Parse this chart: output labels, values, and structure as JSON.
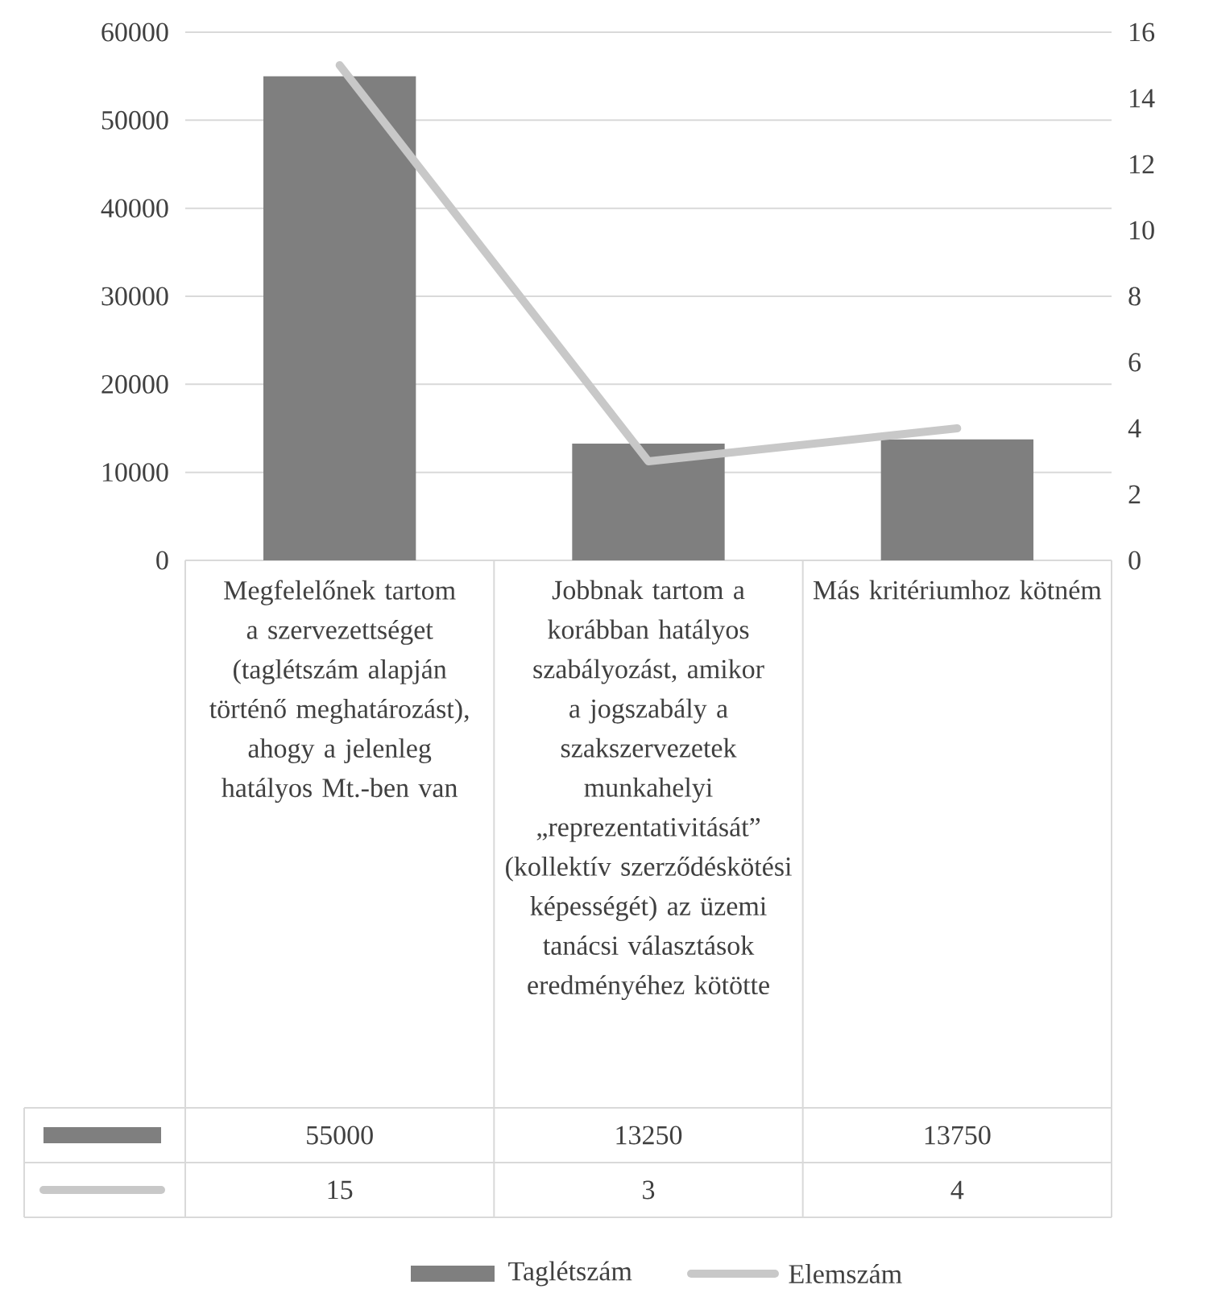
{
  "chart_data": {
    "type": "bar",
    "categories": [
      "Megfelelőnek tartom a szervezettséget (taglétszám alapján történő meghatározást), ahogy a jelenleg hatályos Mt.-ben van",
      "Jobbnak tartom a korábban hatályos szabályozást, amikor a jogszabály a szakszervezetek munkahelyi „reprezentativitását” (kollektív szerződéskötési képességét) az üzemi tanácsi választások eredményéhez kötötte",
      "Más kritériumhoz kötném"
    ],
    "series": [
      {
        "name": "Taglétszám",
        "color": "#7f7f7f",
        "values": [
          55000,
          13250,
          13750
        ]
      },
      {
        "name": "Elemszám",
        "color": "#c8c8c8",
        "values": [
          15,
          3,
          4
        ],
        "type": "line",
        "axis": "y2",
        "marker": "none"
      }
    ],
    "ylim": [
      0,
      60000
    ],
    "yticks": [
      0,
      10000,
      20000,
      30000,
      40000,
      50000,
      60000
    ],
    "y2lim": [
      0,
      16
    ],
    "y2ticks": [
      0,
      2,
      4,
      6,
      8,
      10,
      12,
      14,
      16
    ],
    "grid": "y",
    "legend": "bottom",
    "data_labels": true
  }
}
